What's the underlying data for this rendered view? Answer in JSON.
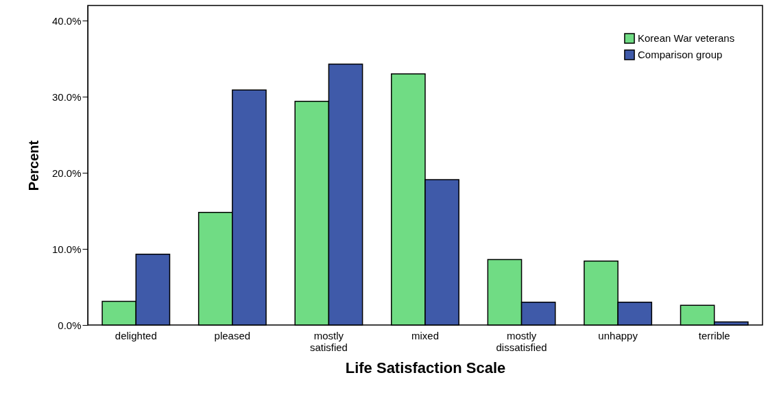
{
  "chart_data": {
    "type": "bar",
    "xlabel": "Life Satisfaction Scale",
    "ylabel": "Percent",
    "categories": [
      "delighted",
      "pleased",
      "mostly satisfied",
      "mixed",
      "mostly dissatisfied",
      "unhappy",
      "terrible"
    ],
    "series": [
      {
        "name": "Korean War veterans",
        "color": "#70dc84",
        "values": [
          3.1,
          14.8,
          29.4,
          33.0,
          8.6,
          8.4,
          2.6
        ]
      },
      {
        "name": "Comparison group",
        "color": "#3f5aa9",
        "values": [
          9.3,
          30.9,
          34.3,
          19.1,
          3.0,
          3.0,
          0.4
        ]
      }
    ],
    "ylim": [
      0,
      42
    ],
    "yticks": [
      {
        "value": 0,
        "label": "0.0%"
      },
      {
        "value": 10,
        "label": "10.0%"
      },
      {
        "value": 20,
        "label": "20.0%"
      },
      {
        "value": 30,
        "label": "30.0%"
      },
      {
        "value": 40,
        "label": "40.0%"
      }
    ],
    "grid": false,
    "legend": "top right"
  }
}
